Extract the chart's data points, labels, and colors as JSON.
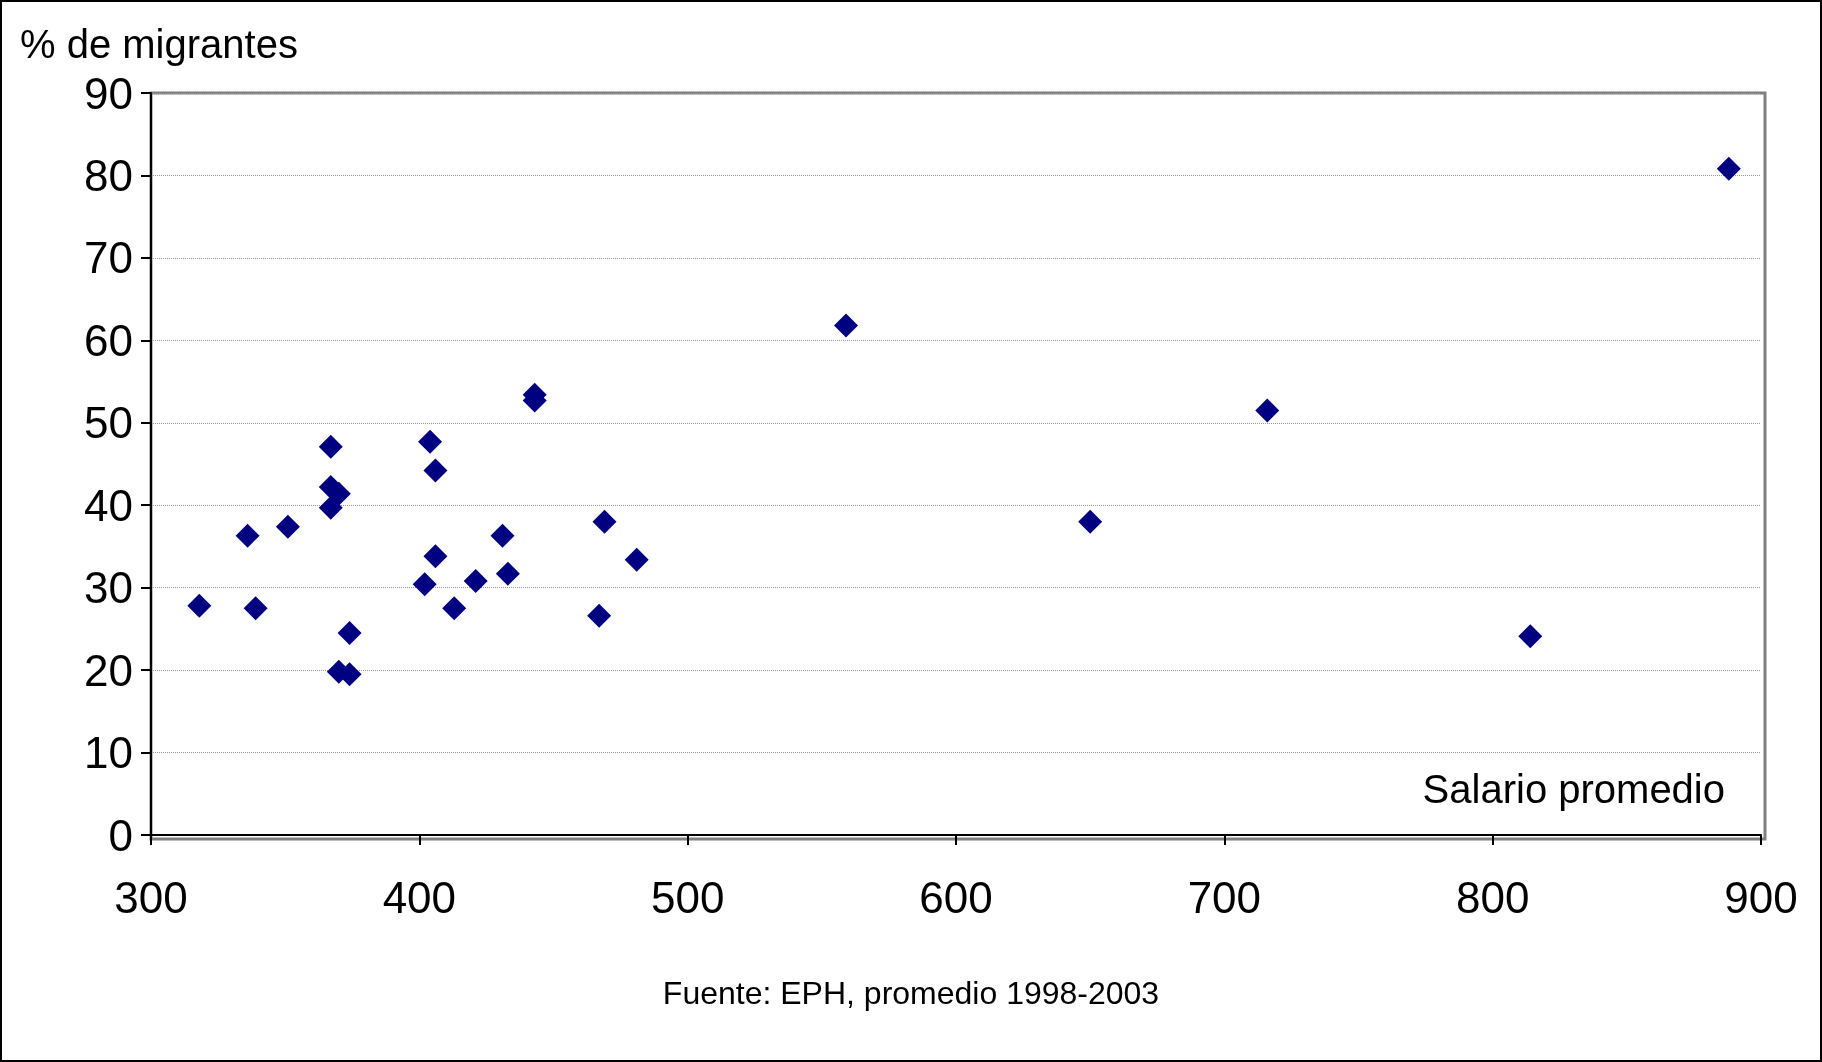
{
  "chart_data": {
    "type": "scatter",
    "xlabel": "Salario promedio",
    "ylabel": "% de migrantes",
    "annotations": [
      "Fuente: EPH, promedio 1998-2003"
    ],
    "x": [
      318,
      336,
      339,
      351,
      367,
      367,
      370,
      367,
      374,
      370,
      374,
      404,
      406,
      402,
      406,
      413,
      421,
      431,
      433,
      443,
      443,
      467,
      469,
      481,
      559,
      650,
      716,
      814,
      888
    ],
    "series": [
      {
        "color": "#000080",
        "values": [
          27.8,
          36.3,
          27.5,
          37.4,
          47.1,
          42.2,
          41.4,
          39.7,
          24.5,
          19.8,
          19.5,
          47.7,
          44.2,
          30.4,
          33.8,
          27.5,
          30.8,
          36.3,
          31.7,
          53.4,
          52.7,
          26.6,
          38.0,
          33.4,
          61.8,
          38.0,
          51.5,
          24.1,
          80.8
        ]
      }
    ],
    "xlim": [
      300,
      900
    ],
    "xticks": [
      300,
      400,
      500,
      600,
      700,
      800,
      900
    ],
    "ylim": [
      0,
      90
    ],
    "yticks": [
      0,
      10,
      20,
      30,
      40,
      50,
      60,
      70,
      80,
      90
    ],
    "grid": "y",
    "marker": "diamond"
  }
}
